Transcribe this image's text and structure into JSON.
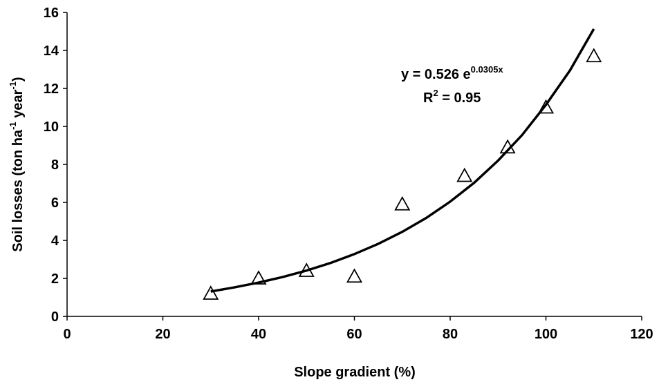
{
  "chart_data": {
    "type": "scatter",
    "x_label": "Slope gradient (%)",
    "y_label": [
      "Soil losses (ton ha",
      "-1",
      " year",
      "-1",
      ")"
    ],
    "x": [
      30,
      40,
      50,
      60,
      70,
      83,
      92,
      100,
      110
    ],
    "values": [
      1.2,
      2.0,
      2.4,
      2.1,
      5.9,
      7.4,
      8.9,
      11.0,
      13.7
    ],
    "marker": "triangle",
    "color": "#000000",
    "trendline": {
      "x": [
        30,
        35,
        40,
        45,
        50,
        55,
        60,
        65,
        70,
        75,
        80,
        85,
        90,
        95,
        100,
        105,
        110
      ],
      "values": [
        1.31,
        1.53,
        1.78,
        2.07,
        2.41,
        2.81,
        3.28,
        3.82,
        4.45,
        5.18,
        6.04,
        7.03,
        8.2,
        9.54,
        11.14,
        12.94,
        15.13
      ]
    },
    "equation": [
      "y = 0.526 e",
      "0.0305x"
    ],
    "r_squared": [
      "R",
      "2",
      " = 0.95"
    ],
    "xlim": [
      0,
      120
    ],
    "xticks": [
      0,
      20,
      40,
      60,
      80,
      100,
      120
    ],
    "ylim": [
      0,
      16
    ],
    "yticks": [
      0,
      2,
      4,
      6,
      8,
      10,
      12,
      14,
      16
    ],
    "grid": false
  }
}
